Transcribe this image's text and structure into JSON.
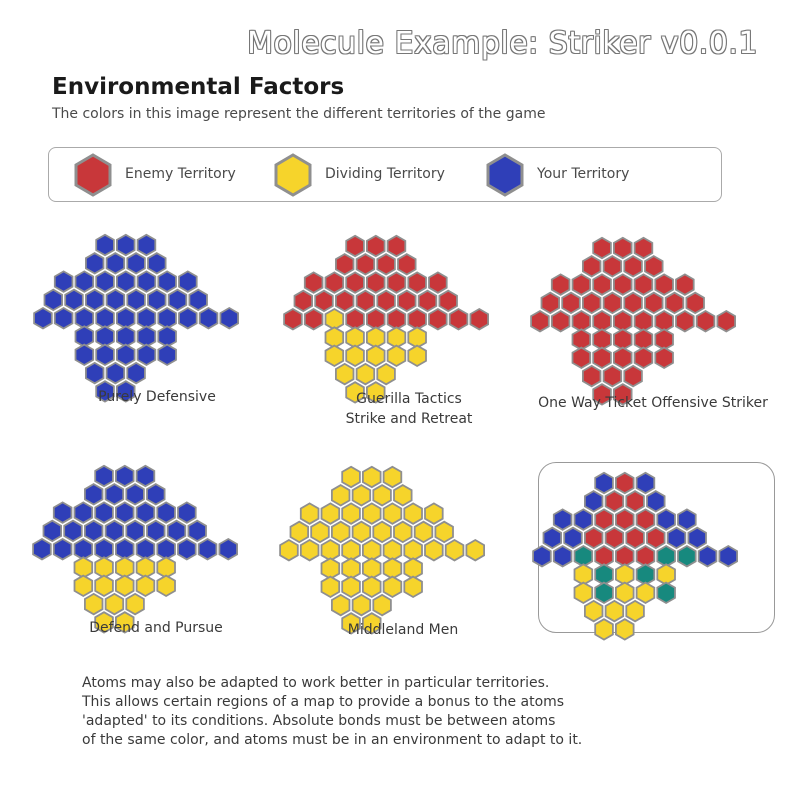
{
  "header": {
    "title": "Molecule Example: Striker v0.0.1",
    "section_title": "Environmental Factors",
    "subtitle": "The colors in this image represent the different territories of the game"
  },
  "colors": {
    "enemy": "#c8373a",
    "dividing": "#f6d42b",
    "yours": "#2f3fb8",
    "special": "#17897e",
    "hex_stroke": "#8f8f8f"
  },
  "legend": [
    {
      "label": "Enemy Territory",
      "territory": "enemy",
      "icon": "red-hexagon-icon"
    },
    {
      "label": "Dividing Territory",
      "territory": "dividing",
      "icon": "yellow-hexagon-icon"
    },
    {
      "label": "Your Territory",
      "territory": "yours",
      "icon": "blue-hexagon-icon"
    }
  ],
  "panels": [
    {
      "id": "purely-defensive",
      "caption": [
        "Purely Defensive"
      ],
      "rows": [
        "BBB",
        "BBBB",
        "BBBBBBB",
        "BBBBBBBB",
        "BBBBBBBBBB",
        "BBBBB",
        "BBBBB",
        "BBB",
        "BB"
      ]
    },
    {
      "id": "guerilla-tactics",
      "caption": [
        "Guerilla Tactics",
        "Strike and Retreat"
      ],
      "rows": [
        "RRR",
        "RRRR",
        "RRRRRRR",
        "RRRRRRRR",
        "RRYRRRRRRR",
        "YYYYY",
        "YYYYY",
        "YYY",
        "YY"
      ]
    },
    {
      "id": "one-way-ticket",
      "caption": [
        "One Way Ticket Offensive Striker"
      ],
      "rows": [
        "RRR",
        "RRRR",
        "RRRRRRR",
        "RRRRRRRR",
        "RRRRRRRRRR",
        "RRRRR",
        "RRRRR",
        "RRR",
        "RR"
      ]
    },
    {
      "id": "defend-and-pursue",
      "caption": [
        "Defend and Pursue"
      ],
      "rows": [
        "BBB",
        "BBBB",
        "BBBBBBB",
        "BBBBBBBB",
        "BBBBBBBBBB",
        "YYYYY",
        "YYYYY",
        "YYY",
        "YY"
      ]
    },
    {
      "id": "middleland-men",
      "caption": [
        "Middleland Men"
      ],
      "rows": [
        "YYY",
        "YYYY",
        "YYYYYYY",
        "YYYYYYYY",
        "YYYYYYYYYY",
        "YYYYY",
        "YYYYY",
        "YYY",
        "YY"
      ]
    },
    {
      "id": "combined-example",
      "caption": [],
      "rows": [
        "BRB",
        "BRRB",
        "BBRRRBB",
        "BBRRRRBB",
        "BBTRRRTTBB",
        "YTYTY",
        "YTYYT",
        "YYY",
        "YY"
      ]
    }
  ],
  "footer": [
    "Atoms may also be adapted to work better in particular territories.",
    "This allows certain regions of a map to provide a bonus to the atoms",
    "'adapted' to its conditions.  Absolute bonds must be between atoms",
    "of the same color, and atoms must be in an environment to adapt to it."
  ]
}
